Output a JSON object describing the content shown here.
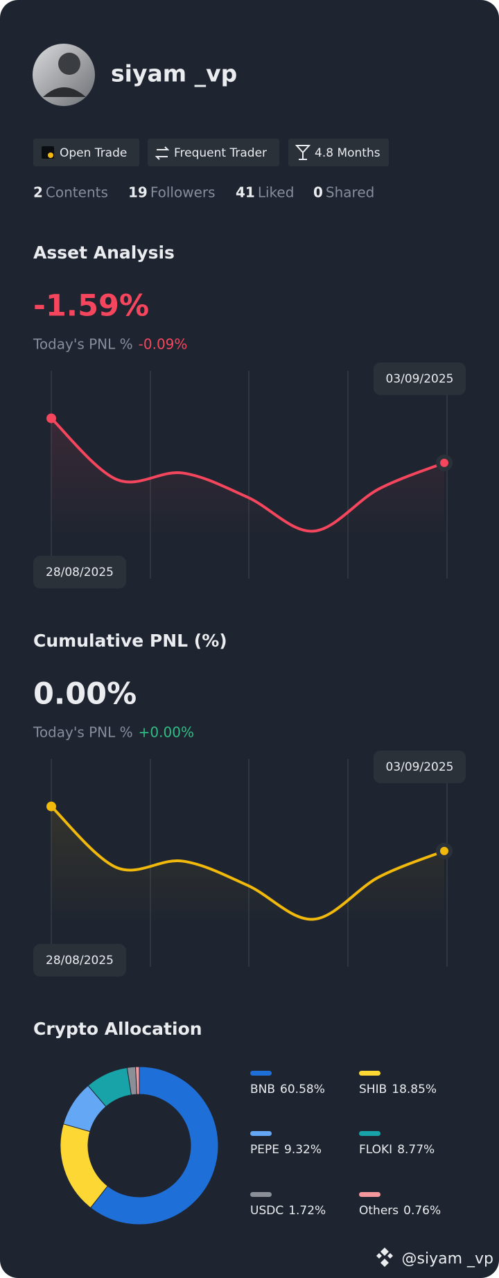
{
  "profile": {
    "name": "siyam _vp",
    "badges": [
      "Open Trade",
      "Frequent Trader",
      "4.8 Months"
    ],
    "stats": [
      {
        "value": 2,
        "label": "Contents"
      },
      {
        "value": 19,
        "label": "Followers"
      },
      {
        "value": 41,
        "label": "Liked"
      },
      {
        "value": 0,
        "label": "Shared"
      }
    ]
  },
  "chart_data": [
    {
      "type": "line",
      "title": "Asset Analysis",
      "headline": "-1.59%",
      "subtitle": "Today's PNL %",
      "subtitle_value": "-0.09%",
      "categories": [
        "28/08/2025",
        null,
        null,
        null,
        null,
        null,
        "03/09/2025"
      ],
      "values": [
        -0.3,
        -1.33,
        -1.22,
        -1.63,
        -2.2,
        -1.49,
        -1.05
      ],
      "color": "#f6465d",
      "ylim": [
        -3,
        0.5
      ]
    },
    {
      "type": "line",
      "title": "Cumulative PNL (%)",
      "headline": "0.00%",
      "subtitle": "Today's PNL %",
      "subtitle_value": "+0.00%",
      "categories": [
        "28/08/2025",
        null,
        null,
        null,
        null,
        null,
        "03/09/2025"
      ],
      "values": [
        -0.3,
        -1.33,
        -1.22,
        -1.63,
        -2.2,
        -1.49,
        -1.05
      ],
      "color": "#f0b90b",
      "ylim": [
        -3,
        0.5
      ]
    },
    {
      "type": "pie",
      "title": "Crypto Allocation",
      "categories": [
        "BNB",
        "SHIB",
        "PEPE",
        "FLOKI",
        "USDC",
        "Others"
      ],
      "values": [
        60.58,
        18.85,
        9.32,
        8.77,
        1.72,
        0.76
      ],
      "value_labels": [
        "60.58%",
        "18.85%",
        "9.32%",
        "8.77%",
        "1.72%",
        "0.76%"
      ],
      "colors": [
        "#1f6fd8",
        "#fdd835",
        "#64a8f5",
        "#18a3a8",
        "#8a8f98",
        "#f5989d"
      ]
    }
  ],
  "footer": "@siyam _vp"
}
